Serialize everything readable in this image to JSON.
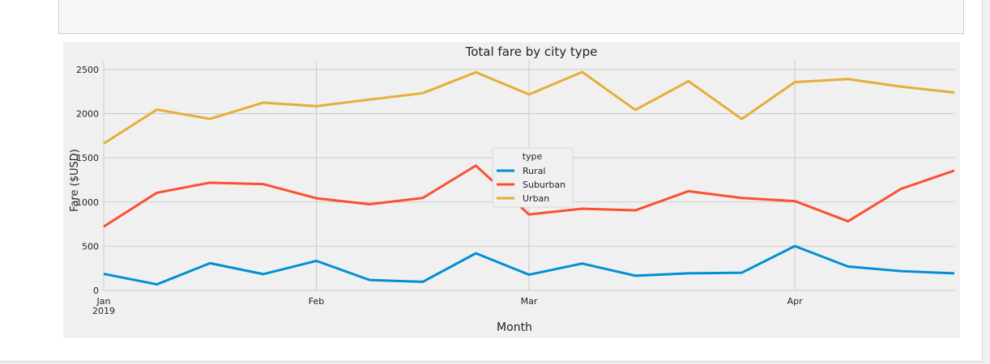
{
  "chart_data": {
    "type": "line",
    "title": "Total fare by city type",
    "xlabel": "Month",
    "ylabel": "Fare ($USD)",
    "x": [
      "2019-01-06",
      "2019-01-13",
      "2019-01-20",
      "2019-01-27",
      "2019-02-03",
      "2019-02-10",
      "2019-02-17",
      "2019-02-24",
      "2019-03-03",
      "2019-03-10",
      "2019-03-17",
      "2019-03-24",
      "2019-03-31",
      "2019-04-07",
      "2019-04-14",
      "2019-04-21",
      "2019-04-28"
    ],
    "xlim": [
      "2019-01-06",
      "2019-04-28"
    ],
    "xticks": [
      {
        "date": "2019-01-06",
        "label": "Jan",
        "sublabel": "2019"
      },
      {
        "date": "2019-02-03",
        "label": "Feb",
        "sublabel": ""
      },
      {
        "date": "2019-03-03",
        "label": "Mar",
        "sublabel": ""
      },
      {
        "date": "2019-04-07",
        "label": "Apr",
        "sublabel": ""
      }
    ],
    "ylim": [
      0,
      2600
    ],
    "yticks": [
      0,
      500,
      1000,
      1500,
      2000,
      2500
    ],
    "grid": true,
    "legend": {
      "title": "type",
      "placement": "center"
    },
    "series": [
      {
        "name": "Rural",
        "color": "#008fd5",
        "values": [
          187,
          68,
          308,
          184,
          334,
          118,
          97,
          420,
          178,
          304,
          166,
          193,
          200,
          501,
          270,
          218,
          193
        ]
      },
      {
        "name": "Suburban",
        "color": "#fc4f30",
        "values": [
          722,
          1105,
          1219,
          1203,
          1043,
          975,
          1046,
          1412,
          859,
          925,
          906,
          1123,
          1046,
          1011,
          782,
          1150,
          1356
        ]
      },
      {
        "name": "Urban",
        "color": "#e5ae38",
        "values": [
          1662,
          2046,
          1941,
          2125,
          2085,
          2160,
          2232,
          2469,
          2218,
          2472,
          2043,
          2368,
          1940,
          2357,
          2392,
          2306,
          2240
        ]
      }
    ]
  }
}
